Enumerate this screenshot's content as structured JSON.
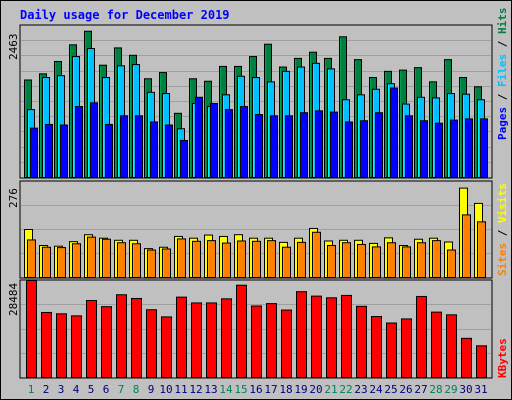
{
  "chart_data": [
    {
      "type": "bar",
      "title": "Daily usage for December 2019",
      "panel": "top",
      "y_max_label": "2463",
      "ylim": [
        0,
        2463
      ],
      "right_label": [
        "Pages",
        "Files",
        "Hits"
      ],
      "right_label_separator": " / ",
      "categories": [
        "1",
        "2",
        "3",
        "4",
        "5",
        "6",
        "7",
        "8",
        "9",
        "10",
        "11",
        "12",
        "13",
        "14",
        "15",
        "16",
        "17",
        "18",
        "19",
        "20",
        "21",
        "22",
        "23",
        "24",
        "25",
        "26",
        "27",
        "28",
        "29",
        "30",
        "31"
      ],
      "series": [
        {
          "name": "Hits",
          "color": "#008040",
          "values": [
            1580,
            1680,
            1880,
            2150,
            2370,
            1820,
            2100,
            1980,
            1600,
            1700,
            1040,
            1600,
            1560,
            1800,
            1800,
            1960,
            2160,
            1790,
            1930,
            2030,
            1930,
            2280,
            1910,
            1620,
            1720,
            1740,
            1780,
            1550,
            1910,
            1620,
            1470
          ]
        },
        {
          "name": "Files",
          "color": "#00c0ff",
          "values": [
            1100,
            1620,
            1650,
            1960,
            2090,
            1620,
            1810,
            1830,
            1380,
            1360,
            790,
            1200,
            1150,
            1340,
            1640,
            1620,
            1550,
            1720,
            1790,
            1850,
            1760,
            1260,
            1340,
            1430,
            1520,
            1190,
            1300,
            1290,
            1360,
            1350,
            1260
          ]
        },
        {
          "name": "Pages",
          "color": "#0000ff",
          "values": [
            800,
            860,
            850,
            1150,
            1210,
            860,
            1000,
            1000,
            900,
            850,
            600,
            1300,
            1200,
            1100,
            1150,
            1020,
            1000,
            1000,
            1050,
            1080,
            1060,
            900,
            920,
            1050,
            1450,
            1000,
            920,
            880,
            930,
            950,
            950
          ]
        }
      ],
      "colors": {
        "Hits": "#008040",
        "Files": "#00c0ff",
        "Pages": "#0000ff"
      }
    },
    {
      "type": "bar",
      "panel": "middle",
      "y_max_label": "276",
      "ylim": [
        0,
        276
      ],
      "right_label": [
        "Sites",
        "Visits"
      ],
      "right_label_separator": " / ",
      "categories": [
        "1",
        "2",
        "3",
        "4",
        "5",
        "6",
        "7",
        "8",
        "9",
        "10",
        "11",
        "12",
        "13",
        "14",
        "15",
        "16",
        "17",
        "18",
        "19",
        "20",
        "21",
        "22",
        "23",
        "24",
        "25",
        "26",
        "27",
        "28",
        "29",
        "30",
        "31"
      ],
      "series": [
        {
          "name": "Visits",
          "color": "#ffff00",
          "values": [
            138,
            92,
            90,
            103,
            123,
            113,
            107,
            107,
            83,
            87,
            118,
            113,
            122,
            118,
            123,
            113,
            113,
            101,
            113,
            141,
            105,
            107,
            107,
            98,
            114,
            92,
            110,
            113,
            102,
            257,
            213
          ]
        },
        {
          "name": "Sites",
          "color": "#ff8000",
          "values": [
            108,
            87,
            86,
            97,
            116,
            110,
            100,
            97,
            79,
            82,
            111,
            104,
            106,
            99,
            105,
            104,
            106,
            87,
            101,
            130,
            92,
            100,
            95,
            88,
            100,
            88,
            100,
            106,
            79,
            180,
            160
          ]
        }
      ],
      "colors": {
        "Visits": "#ffff00",
        "Sites": "#ff8000"
      }
    },
    {
      "type": "bar",
      "panel": "bottom",
      "y_max_label": "28484",
      "ylim": [
        0,
        28484
      ],
      "right_label": [
        "KBytes"
      ],
      "categories": [
        "1",
        "2",
        "3",
        "4",
        "5",
        "6",
        "7",
        "8",
        "9",
        "10",
        "11",
        "12",
        "13",
        "14",
        "15",
        "16",
        "17",
        "18",
        "19",
        "20",
        "21",
        "22",
        "23",
        "24",
        "25",
        "26",
        "27",
        "28",
        "29",
        "30",
        "31"
      ],
      "series": [
        {
          "name": "KBytes",
          "color": "#ff0000",
          "values": [
            28484,
            19100,
            18700,
            18100,
            22600,
            20800,
            24300,
            23200,
            19900,
            17800,
            23600,
            21900,
            21900,
            23100,
            27100,
            21000,
            21700,
            19800,
            25200,
            23900,
            23400,
            24100,
            20900,
            17900,
            16000,
            17200,
            23800,
            19200,
            18400,
            11500,
            9300
          ]
        }
      ],
      "colors": {
        "KBytes": "#ff0000"
      }
    }
  ],
  "x_label_colors": {
    "weekday": "#000080",
    "weekend": "#00805c"
  },
  "weekend_days": [
    "1",
    "7",
    "8",
    "14",
    "15",
    "21",
    "22",
    "28",
    "29"
  ]
}
